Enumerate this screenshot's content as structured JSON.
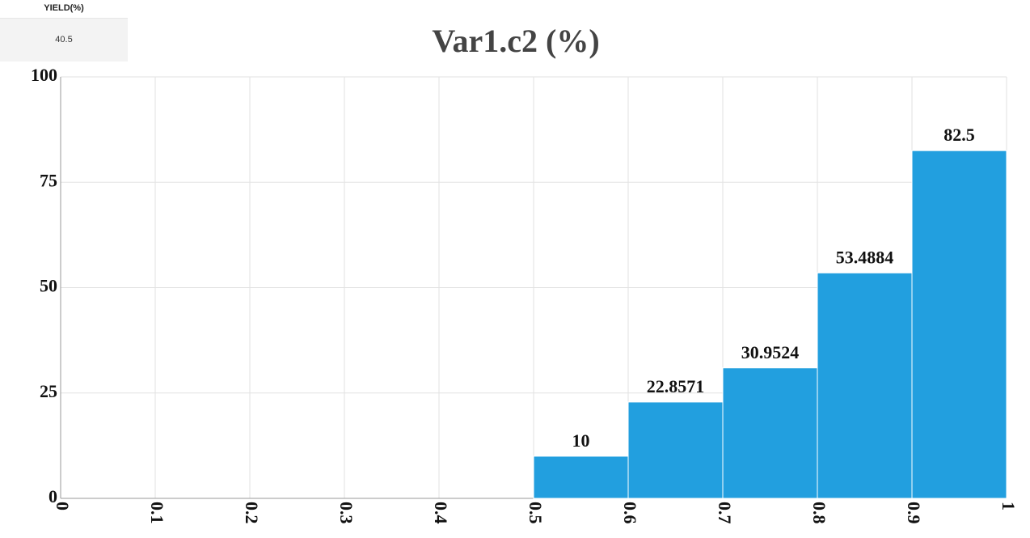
{
  "yield_box": {
    "header": "YIELD(%)",
    "value": "40.5"
  },
  "chart_data": {
    "type": "histogram",
    "title": "Var1.c2 (%)",
    "bins": [
      0,
      0.1,
      0.2,
      0.3,
      0.4,
      0.5,
      0.6,
      0.7,
      0.8,
      0.9,
      1
    ],
    "counts": [
      null,
      null,
      null,
      null,
      null,
      10,
      22.8571,
      30.9524,
      53.4884,
      82.5
    ],
    "color": "#229fdf",
    "xlim": [
      0,
      1
    ],
    "xticks": [
      0,
      0.1,
      0.2,
      0.3,
      0.4,
      0.5,
      0.6,
      0.7,
      0.8,
      0.9,
      1
    ],
    "ylim": [
      0,
      100
    ],
    "yticks": [
      0,
      25,
      50,
      75,
      100
    ],
    "grid": true
  }
}
